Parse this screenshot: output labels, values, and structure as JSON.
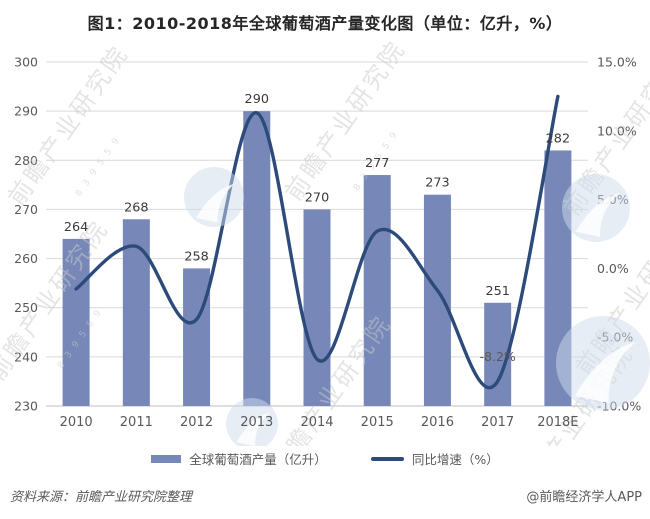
{
  "title": "图1：2010-2018年全球葡萄酒产量变化图（单位：亿升，%）",
  "colors": {
    "bar": "#7788B8",
    "line": "#2D4B7A",
    "grid": "#D9D9D9",
    "axis_line": "#BFBFBF",
    "axis_text": "#595959",
    "value_text": "#3A3A3A",
    "watermark_text": "#C9C9C9",
    "logo_fill": "#CFDCEC"
  },
  "chart_data": {
    "type": "combo: bar (left axis) + smoothed line (right axis)",
    "categories": [
      "2010",
      "2011",
      "2012",
      "2013",
      "2014",
      "2015",
      "2016",
      "2017",
      "2018E"
    ],
    "series": [
      {
        "name": "全球葡萄酒产量（亿升）",
        "type": "bar",
        "axis": "left",
        "values": [
          264,
          268,
          258,
          290,
          270,
          277,
          273,
          251,
          282
        ],
        "labels": [
          "264",
          "268",
          "258",
          "290",
          "270",
          "277",
          "273",
          "251",
          "282"
        ]
      },
      {
        "name": "同比增速（%）",
        "type": "line",
        "axis": "right",
        "values": [
          -1.5,
          1.6,
          -3.7,
          11.3,
          -6.6,
          2.7,
          -1.6,
          -8.2,
          12.5
        ],
        "visible_point_label": {
          "index": 7,
          "text": "-8.2%"
        }
      }
    ],
    "left_axis": {
      "min": 230,
      "max": 300,
      "step": 10,
      "tick_labels": [
        "300",
        "290",
        "280",
        "270",
        "260",
        "250",
        "240",
        "230"
      ]
    },
    "right_axis": {
      "min": -10,
      "max": 15,
      "step": 5,
      "tick_labels": [
        "15.0%",
        "10.0%",
        "5.0%",
        "0.0%",
        "-5.0%",
        "-10.0%"
      ]
    },
    "grid": true,
    "legend_position": "bottom"
  },
  "legend": {
    "items": [
      {
        "label": "全球葡萄酒产量（亿升）",
        "swatch": "bar"
      },
      {
        "label": "同比增速（%）",
        "swatch": "line"
      }
    ]
  },
  "footer": {
    "source": "资料来源：前瞻产业研究院整理",
    "credit": "@前瞻经济学人APP"
  },
  "watermark": {
    "text": "前瞻产业研究院",
    "digits": "8 3 9 5 5 9"
  }
}
